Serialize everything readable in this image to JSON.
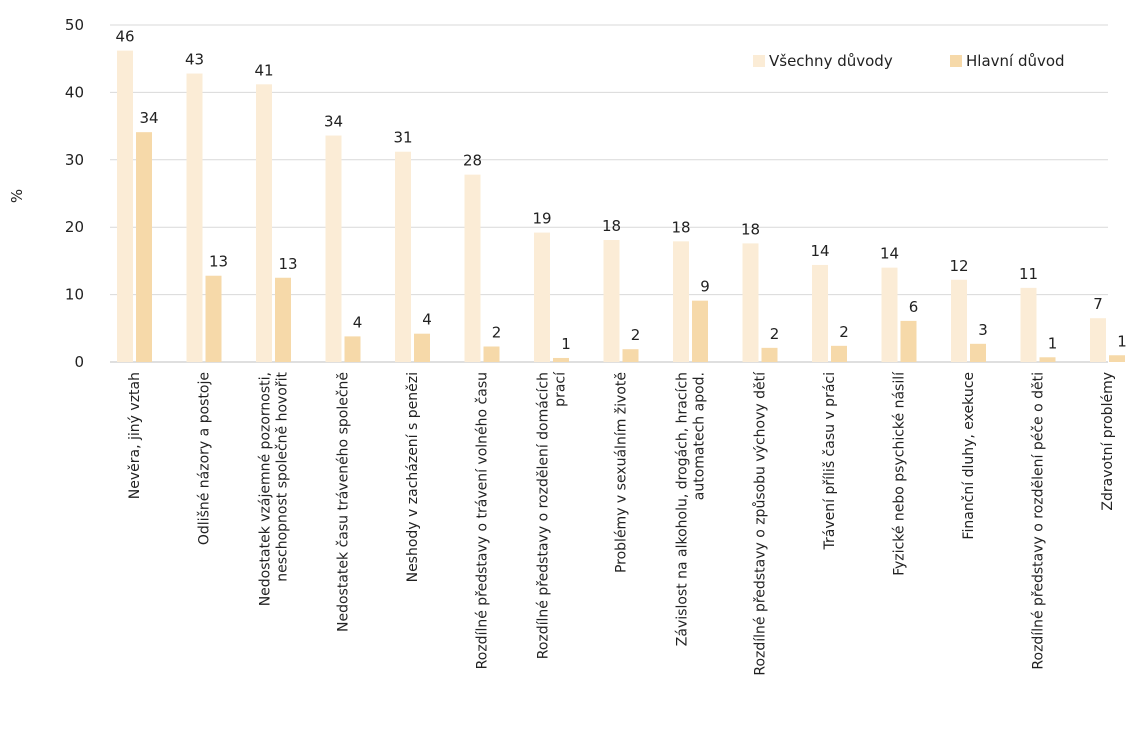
{
  "chart_data": {
    "type": "bar",
    "ylabel": "%",
    "ylim": [
      0,
      50
    ],
    "yticks": [
      0,
      10,
      20,
      30,
      40,
      50
    ],
    "grid": true,
    "legend_position": "top-right",
    "categories": [
      [
        "Nevěra, jiný vztah"
      ],
      [
        "Odlišné názory a postoje"
      ],
      [
        "Nedostatek vzájemné pozornosti,",
        "neschopnost společně hovořit"
      ],
      [
        "Nedostatek času tráveného společně"
      ],
      [
        "Neshody v zacházení s penězi"
      ],
      [
        "Rozdílné představy o trávení volného času"
      ],
      [
        "Rozdílné představy o rozdělení domácích",
        "prací"
      ],
      [
        "Problémy v sexuálním životě"
      ],
      [
        "Závislost na alkoholu, drogách, hracích",
        "automatech apod."
      ],
      [
        "Rozdílné představy o způsobu výchovy dětí"
      ],
      [
        "Trávení příliš času v práci"
      ],
      [
        "Fyzické nebo psychické násilí"
      ],
      [
        "Finanční dluhy, exekuce"
      ],
      [
        "Rozdílné představy o rozdělení péče o děti"
      ],
      [
        "Zdravotní problémy"
      ]
    ],
    "series": [
      {
        "name": "Všechny důvody",
        "color": "#fbecd6",
        "values": [
          46.2,
          42.8,
          41.2,
          33.6,
          31.2,
          27.8,
          19.2,
          18.1,
          17.9,
          17.6,
          14.4,
          14.0,
          12.2,
          11.0,
          6.5
        ],
        "labels": [
          "46",
          "43",
          "41",
          "34",
          "31",
          "28",
          "19",
          "18",
          "18",
          "18",
          "14",
          "14",
          "12",
          "11",
          "7"
        ]
      },
      {
        "name": "Hlavní důvod",
        "color": "#f6d9a9",
        "values": [
          34.1,
          12.8,
          12.5,
          3.8,
          4.2,
          2.3,
          0.6,
          1.9,
          9.1,
          2.1,
          2.4,
          6.1,
          2.7,
          0.7,
          1.0
        ],
        "labels": [
          "34",
          "13",
          "13",
          "4",
          "4",
          "2",
          "1",
          "2",
          "9",
          "2",
          "2",
          "6",
          "3",
          "1",
          "1"
        ]
      }
    ]
  }
}
